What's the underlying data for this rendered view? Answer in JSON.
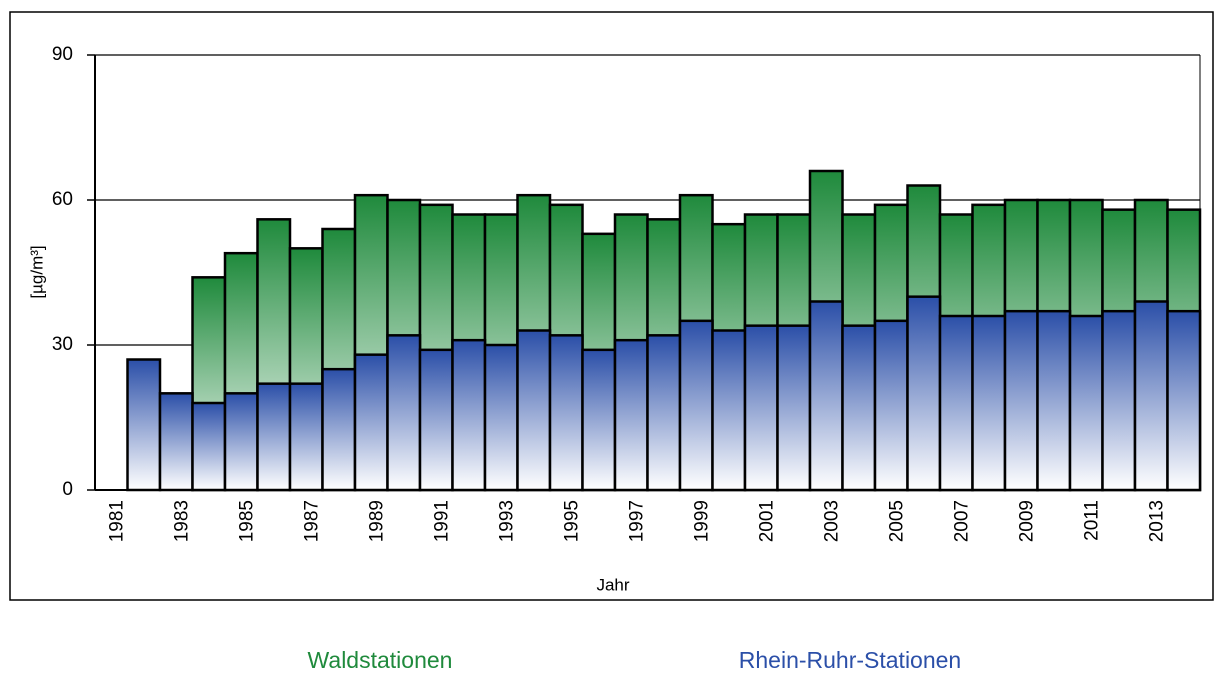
{
  "chart_data": {
    "type": "bar",
    "mode": "overlap",
    "y_label": "[µg/m³]",
    "x_label": "Jahr",
    "categories": [
      "1981",
      null,
      "1983",
      null,
      "1985",
      null,
      "1987",
      null,
      "1989",
      null,
      "1991",
      null,
      "1993",
      null,
      "1995",
      null,
      "1997",
      null,
      "1999",
      null,
      "2001",
      null,
      "2003",
      null,
      "2005",
      null,
      "2007",
      null,
      "2009",
      null,
      "2011",
      null,
      "2013",
      null
    ],
    "series": [
      {
        "name": "Waldstationen",
        "color": "#1f8a3c",
        "values": [
          null,
          null,
          null,
          44,
          49,
          56,
          50,
          54,
          61,
          60,
          59,
          57,
          57,
          61,
          59,
          53,
          57,
          56,
          61,
          55,
          57,
          57,
          66,
          57,
          59,
          63,
          57,
          59,
          60,
          60,
          60,
          58,
          60,
          58
        ]
      },
      {
        "name": "Rhein-Ruhr-Stationen",
        "color": "#2b4fa8",
        "values": [
          null,
          27,
          20,
          18,
          20,
          22,
          22,
          25,
          28,
          32,
          29,
          31,
          30,
          33,
          32,
          29,
          31,
          32,
          35,
          33,
          34,
          34,
          39,
          34,
          35,
          40,
          36,
          36,
          37,
          37,
          36,
          37,
          39,
          37
        ]
      }
    ],
    "ylim": [
      0,
      90
    ],
    "yticks": [
      0,
      30,
      60,
      90
    ],
    "grid": true
  }
}
